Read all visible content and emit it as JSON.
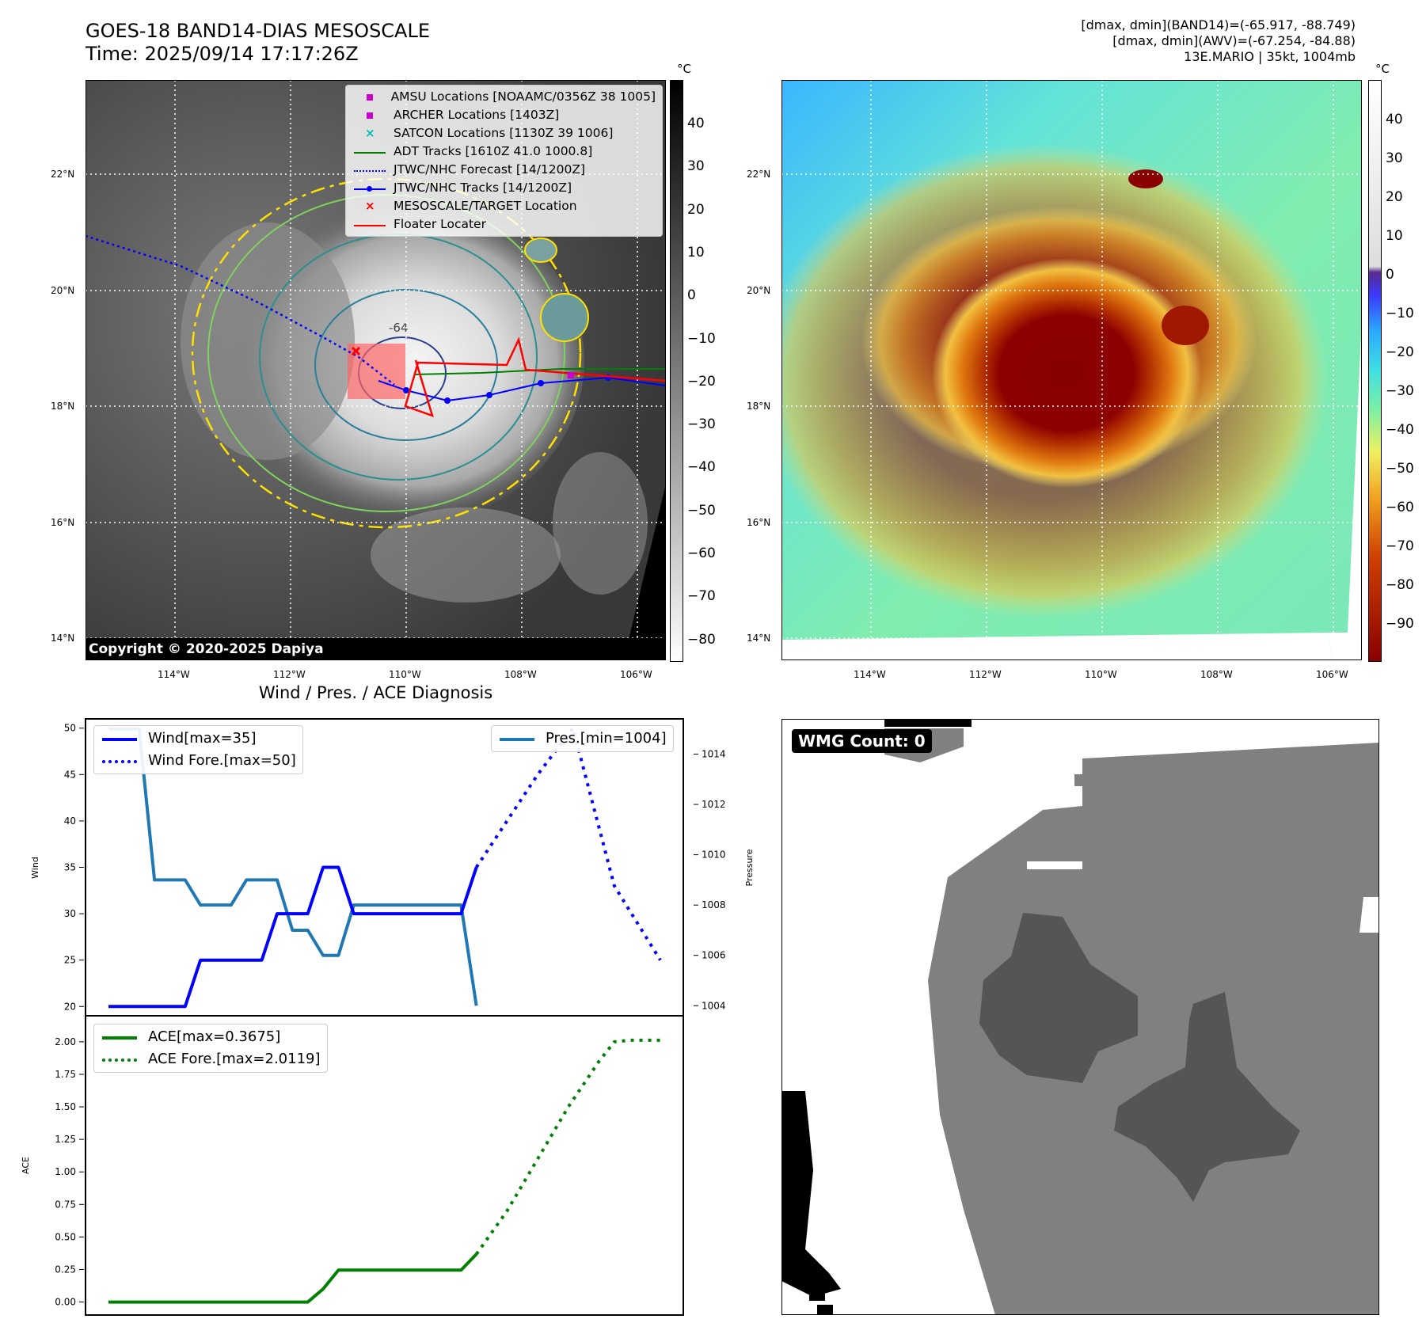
{
  "header": {
    "title_line1": "GOES-18 BAND14-DIAS MESOSCALE",
    "title_line2": "Time: 2025/09/14 17:17:26Z",
    "stats_line1": "[dmax, dmin](BAND14)=(-65.917, -88.749)",
    "stats_line2": "[dmax, dmin](AWV)=(-67.254, -84.88)",
    "stats_line3": "13E.MARIO | 35kt, 1004mb"
  },
  "map_axes": {
    "lat_labels": [
      "22°N",
      "20°N",
      "18°N",
      "16°N",
      "14°N"
    ],
    "lon_labels": [
      "114°W",
      "112°W",
      "110°W",
      "108°W",
      "106°W"
    ]
  },
  "ir_panel": {
    "legend": [
      {
        "label": "AMSU Locations [NOAAMC/0356Z 38 1005]",
        "color": "#cc00cc",
        "marker": "square"
      },
      {
        "label": "ARCHER Locations [1403Z]",
        "color": "#cc00cc",
        "marker": "square"
      },
      {
        "label": "SATCON Locations [1130Z 39 1006]",
        "color": "#00b8b8",
        "marker": "x"
      },
      {
        "label": "ADT Tracks [1610Z 41.0 1000.8]",
        "color": "#008000",
        "marker": "line"
      },
      {
        "label": "JTWC/NHC Forecast [14/1200Z]",
        "color": "#0000ff",
        "marker": "dotted"
      },
      {
        "label": "JTWC/NHC Tracks [14/1200Z]",
        "color": "#0000ff",
        "marker": "line-dot"
      },
      {
        "label": "MESOSCALE/TARGET Location",
        "color": "#ff0000",
        "marker": "x"
      },
      {
        "label": "Floater Locater",
        "color": "#ff0000",
        "marker": "line"
      }
    ],
    "copyright": "Copyright © 2020-2025 Dapiya",
    "contour_label": "-64",
    "colorbar_unit": "°C",
    "colorbar_ticks": [
      "40",
      "30",
      "20",
      "10",
      "0",
      "−10",
      "−20",
      "−30",
      "−40",
      "−50",
      "−60",
      "−70",
      "−80"
    ]
  },
  "awv_panel": {
    "colorbar_unit": "°C",
    "colorbar_ticks": [
      "40",
      "30",
      "20",
      "10",
      "0",
      "−10",
      "−20",
      "−30",
      "−40",
      "−50",
      "−60",
      "−70",
      "−80",
      "−90"
    ]
  },
  "diagnosis": {
    "title": "Wind / Pres. / ACE Diagnosis",
    "wind_ylabel": "Wind",
    "pres_ylabel": "Pressure",
    "ace_ylabel": "ACE",
    "wind_legend": [
      "Wind[max=35]",
      "Wind Fore.[max=50]"
    ],
    "pres_legend": "Pres.[min=1004]",
    "ace_legend": [
      "ACE[max=0.3675]",
      "ACE Fore.[max=2.0119]"
    ],
    "wind_ticks": [
      "50",
      "45",
      "40",
      "35",
      "30",
      "25",
      "20"
    ],
    "pres_ticks": [
      "1014",
      "1012",
      "1010",
      "1008",
      "1006",
      "1004"
    ],
    "ace_ticks": [
      "2.00",
      "1.75",
      "1.50",
      "1.25",
      "1.00",
      "0.75",
      "0.50",
      "0.25",
      "0.00"
    ]
  },
  "wmg_panel": {
    "badge": "WMG Count: 0"
  },
  "chart_data": [
    {
      "type": "line",
      "title": "",
      "ylabel": "Wind",
      "ylim": [
        19,
        51
      ],
      "series": [
        {
          "name": "Wind[max=35]",
          "color": "#0000ff",
          "style": "solid",
          "x": [
            0,
            1,
            2,
            3,
            4,
            5,
            6,
            7,
            8,
            9,
            10,
            11,
            12,
            13,
            14,
            15,
            16,
            17,
            18,
            19,
            20,
            21,
            22,
            23,
            24
          ],
          "values": [
            20,
            20,
            20,
            20,
            20,
            20,
            25,
            25,
            25,
            25,
            25,
            30,
            30,
            30,
            35,
            35,
            30,
            30,
            30,
            30,
            30,
            30,
            30,
            30,
            35
          ]
        },
        {
          "name": "Wind Fore.[max=50]",
          "color": "#0000ff",
          "style": "dotted",
          "x": [
            24,
            28,
            30.3,
            33,
            36
          ],
          "values": [
            35,
            45,
            50,
            33,
            25
          ]
        }
      ]
    },
    {
      "type": "line",
      "ylabel": "Pressure",
      "ylim": [
        1003.6,
        1015.4
      ],
      "series": [
        {
          "name": "Pres.[min=1004]",
          "color": "#1f77b4",
          "style": "solid",
          "x": [
            0,
            1,
            2,
            3,
            4,
            5,
            6,
            7,
            8,
            9,
            10,
            11,
            12,
            13,
            14,
            15,
            16,
            17,
            18,
            19,
            20,
            21,
            22,
            23,
            24
          ],
          "values": [
            1015,
            1015,
            1015,
            1009,
            1009,
            1009,
            1008,
            1008,
            1008,
            1009,
            1009,
            1009,
            1007,
            1007,
            1006,
            1006,
            1008,
            1008,
            1008,
            1008,
            1008,
            1008,
            1008,
            1008,
            1004
          ]
        }
      ]
    },
    {
      "type": "line",
      "ylabel": "ACE",
      "ylim": [
        -0.1,
        2.2
      ],
      "series": [
        {
          "name": "ACE[max=0.3675]",
          "color": "#008000",
          "style": "solid",
          "x": [
            0,
            1,
            2,
            3,
            4,
            5,
            6,
            7,
            8,
            9,
            10,
            11,
            12,
            13,
            14,
            15,
            16,
            17,
            18,
            19,
            20,
            21,
            22,
            23,
            24
          ],
          "values": [
            0,
            0,
            0,
            0,
            0,
            0,
            0,
            0,
            0,
            0,
            0,
            0,
            0,
            0,
            0.1,
            0.245,
            0.245,
            0.245,
            0.245,
            0.245,
            0.245,
            0.245,
            0.245,
            0.245,
            0.3675
          ]
        },
        {
          "name": "ACE Fore.[max=2.0119]",
          "color": "#008000",
          "style": "dotted",
          "x": [
            24,
            26,
            28,
            30,
            32,
            33,
            34,
            36
          ],
          "values": [
            0.3675,
            0.7,
            1.1,
            1.5,
            1.85,
            2.0,
            2.0119,
            2.0119
          ]
        }
      ]
    }
  ]
}
